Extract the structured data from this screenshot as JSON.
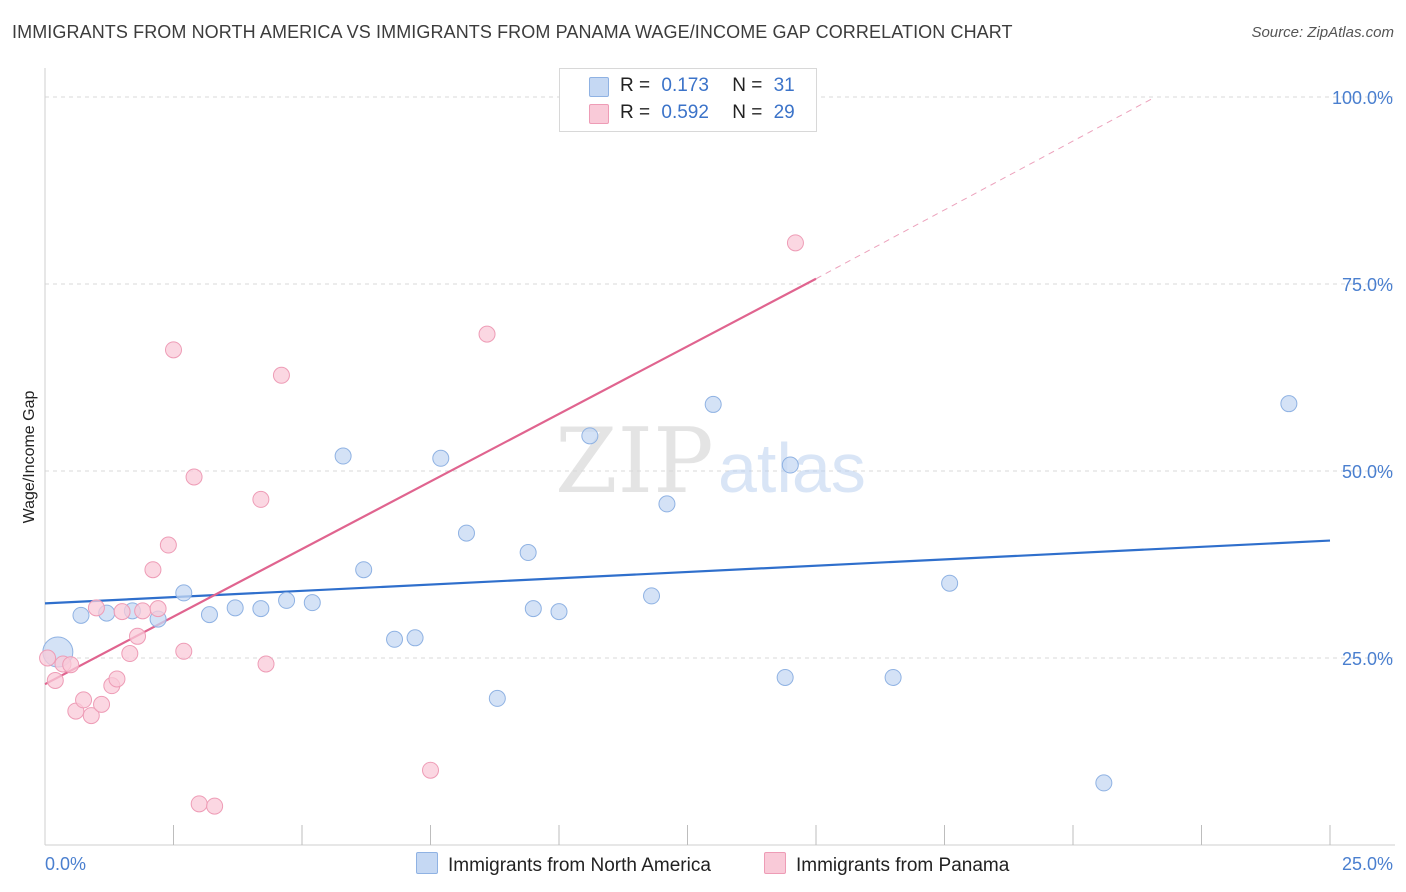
{
  "title": "IMMIGRANTS FROM NORTH AMERICA VS IMMIGRANTS FROM PANAMA WAGE/INCOME GAP CORRELATION CHART",
  "source": "Source: ZipAtlas.com",
  "watermark": {
    "zip": "ZIP",
    "atlas": "atlas"
  },
  "legend": {
    "rows": [
      {
        "r_label": "R =",
        "r_value": "0.173",
        "n_label": "N =",
        "n_value": "31"
      },
      {
        "r_label": "R =",
        "r_value": "0.592",
        "n_label": "N =",
        "n_value": "29"
      }
    ]
  },
  "colors": {
    "blue_fill": "#c5d8f3",
    "blue_stroke": "#8fb2e3",
    "blue_line": "#2f6fcc",
    "pink_fill": "#f9cad8",
    "pink_stroke": "#ee9cb6",
    "pink_line": "#e0648f",
    "grid": "#d9d9d9",
    "tick_text": "#4a7fcf"
  },
  "chart_data": {
    "type": "scatter",
    "xlabel": "",
    "ylabel": "Wage/Income Gap",
    "xlim": [
      0,
      25
    ],
    "ylim": [
      0,
      105
    ],
    "x_tick_labels": [
      {
        "value": 0,
        "label": "0.0%"
      },
      {
        "value": 25,
        "label": "25.0%"
      }
    ],
    "y_tick_labels": [
      {
        "value": 25,
        "label": "25.0%"
      },
      {
        "value": 50,
        "label": "50.0%"
      },
      {
        "value": 75,
        "label": "75.0%"
      },
      {
        "value": 100,
        "label": "100.0%"
      }
    ],
    "series": [
      {
        "name": "Immigrants from North America",
        "color": "blue",
        "r": 0.173,
        "n": 31,
        "trend": {
          "x0": 0,
          "y0": 32.3,
          "x1": 25,
          "y1": 40.7
        },
        "points": [
          {
            "x": 0.25,
            "y": 25.8,
            "size": "large"
          },
          {
            "x": 0.7,
            "y": 30.7
          },
          {
            "x": 1.2,
            "y": 31.0
          },
          {
            "x": 1.7,
            "y": 31.3
          },
          {
            "x": 2.2,
            "y": 30.2
          },
          {
            "x": 2.7,
            "y": 33.7
          },
          {
            "x": 3.2,
            "y": 30.8
          },
          {
            "x": 3.7,
            "y": 31.7
          },
          {
            "x": 4.2,
            "y": 31.6
          },
          {
            "x": 4.7,
            "y": 32.7
          },
          {
            "x": 5.2,
            "y": 32.4
          },
          {
            "x": 5.8,
            "y": 52.0
          },
          {
            "x": 6.2,
            "y": 36.8
          },
          {
            "x": 6.8,
            "y": 27.5
          },
          {
            "x": 7.2,
            "y": 27.7
          },
          {
            "x": 7.7,
            "y": 51.7
          },
          {
            "x": 8.2,
            "y": 41.7
          },
          {
            "x": 8.8,
            "y": 19.6
          },
          {
            "x": 9.4,
            "y": 39.1
          },
          {
            "x": 9.5,
            "y": 31.6
          },
          {
            "x": 10.0,
            "y": 31.2
          },
          {
            "x": 10.6,
            "y": 54.7
          },
          {
            "x": 11.8,
            "y": 33.3
          },
          {
            "x": 12.1,
            "y": 45.6
          },
          {
            "x": 13.0,
            "y": 58.9
          },
          {
            "x": 14.4,
            "y": 22.4
          },
          {
            "x": 14.5,
            "y": 50.8
          },
          {
            "x": 16.5,
            "y": 22.4
          },
          {
            "x": 17.6,
            "y": 35.0
          },
          {
            "x": 20.6,
            "y": 8.3
          },
          {
            "x": 24.2,
            "y": 59.0
          }
        ]
      },
      {
        "name": "Immigrants from Panama",
        "color": "pink",
        "r": 0.592,
        "n": 29,
        "trend": {
          "x0": 0,
          "y0": 21.5,
          "x1": 15,
          "y1": 75.7
        },
        "trend_extension": {
          "x0": 15,
          "y0": 75.7,
          "x1": 21.6,
          "y1": 100.0
        },
        "points": [
          {
            "x": 0.05,
            "y": 25.0
          },
          {
            "x": 0.2,
            "y": 22.0
          },
          {
            "x": 0.35,
            "y": 24.2
          },
          {
            "x": 0.5,
            "y": 24.1
          },
          {
            "x": 0.6,
            "y": 17.9
          },
          {
            "x": 0.75,
            "y": 19.4
          },
          {
            "x": 0.9,
            "y": 17.3
          },
          {
            "x": 1.0,
            "y": 31.7
          },
          {
            "x": 1.1,
            "y": 18.8
          },
          {
            "x": 1.3,
            "y": 21.3
          },
          {
            "x": 1.4,
            "y": 22.2
          },
          {
            "x": 1.5,
            "y": 31.2
          },
          {
            "x": 1.65,
            "y": 25.6
          },
          {
            "x": 1.8,
            "y": 27.9
          },
          {
            "x": 1.9,
            "y": 31.3
          },
          {
            "x": 2.1,
            "y": 36.8
          },
          {
            "x": 2.2,
            "y": 31.6
          },
          {
            "x": 2.4,
            "y": 40.1
          },
          {
            "x": 2.5,
            "y": 66.2
          },
          {
            "x": 2.7,
            "y": 25.9
          },
          {
            "x": 2.9,
            "y": 49.2
          },
          {
            "x": 3.0,
            "y": 5.5
          },
          {
            "x": 3.3,
            "y": 5.2
          },
          {
            "x": 4.2,
            "y": 46.2
          },
          {
            "x": 4.3,
            "y": 24.2
          },
          {
            "x": 4.6,
            "y": 62.8
          },
          {
            "x": 7.5,
            "y": 10.0
          },
          {
            "x": 8.6,
            "y": 68.3
          },
          {
            "x": 14.6,
            "y": 80.5
          }
        ]
      }
    ]
  }
}
